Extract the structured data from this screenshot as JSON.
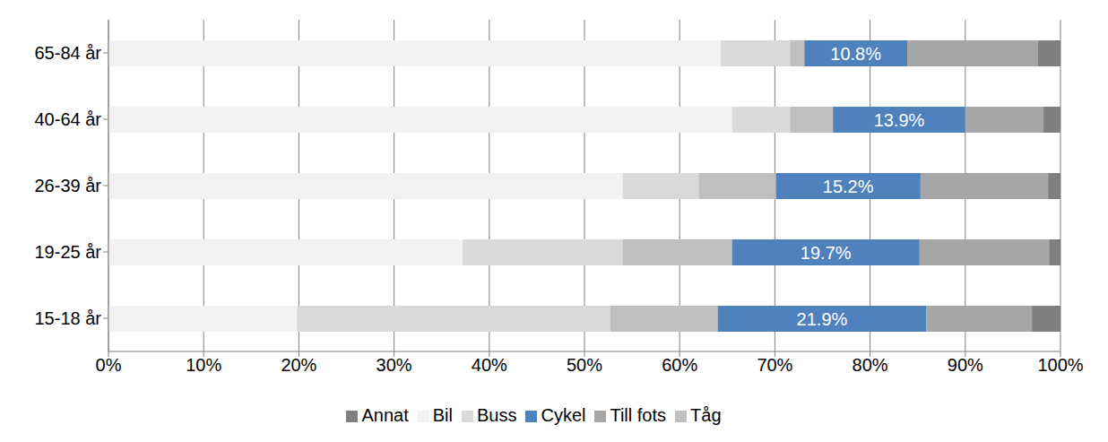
{
  "chart_data": {
    "type": "bar",
    "orientation": "horizontal",
    "stacked": true,
    "grid": true,
    "legend": "bottom",
    "categories": [
      "65-84 år",
      "40-64 år",
      "26-39 år",
      "19-25 år",
      "15-18 år"
    ],
    "xlim": [
      0,
      100
    ],
    "xticks": [
      {
        "value": 0,
        "label": "0%"
      },
      {
        "value": 10,
        "label": "10%"
      },
      {
        "value": 20,
        "label": "20%"
      },
      {
        "value": 30,
        "label": "30%"
      },
      {
        "value": 40,
        "label": "40%"
      },
      {
        "value": 50,
        "label": "50%"
      },
      {
        "value": 60,
        "label": "60%"
      },
      {
        "value": 70,
        "label": "70%"
      },
      {
        "value": 80,
        "label": "80%"
      },
      {
        "value": 90,
        "label": "90%"
      },
      {
        "value": 100,
        "label": "100%"
      }
    ],
    "series": [
      {
        "name": "Bil",
        "color": "#f2f2f2",
        "values": [
          64.3,
          65.5,
          54.0,
          37.2,
          19.8
        ]
      },
      {
        "name": "Buss",
        "color": "#d9d9d9",
        "values": [
          7.3,
          6.1,
          8.0,
          16.8,
          32.9
        ]
      },
      {
        "name": "Tåg",
        "color": "#bfbfbf",
        "values": [
          1.5,
          4.5,
          8.1,
          11.5,
          11.3
        ]
      },
      {
        "name": "Cykel",
        "color": "#4f81bd",
        "values": [
          10.8,
          13.9,
          15.2,
          19.7,
          21.9
        ],
        "value_labels": [
          "10.8%",
          "13.9%",
          "15.2%",
          "19.7%",
          "21.9%"
        ],
        "data_labels": true
      },
      {
        "name": "Till fots",
        "color": "#a6a6a6",
        "values": [
          13.7,
          8.2,
          13.4,
          13.6,
          11.1
        ]
      },
      {
        "name": "Annat",
        "color": "#7f7f7f",
        "values": [
          2.4,
          1.8,
          1.3,
          1.2,
          3.0
        ]
      }
    ]
  }
}
